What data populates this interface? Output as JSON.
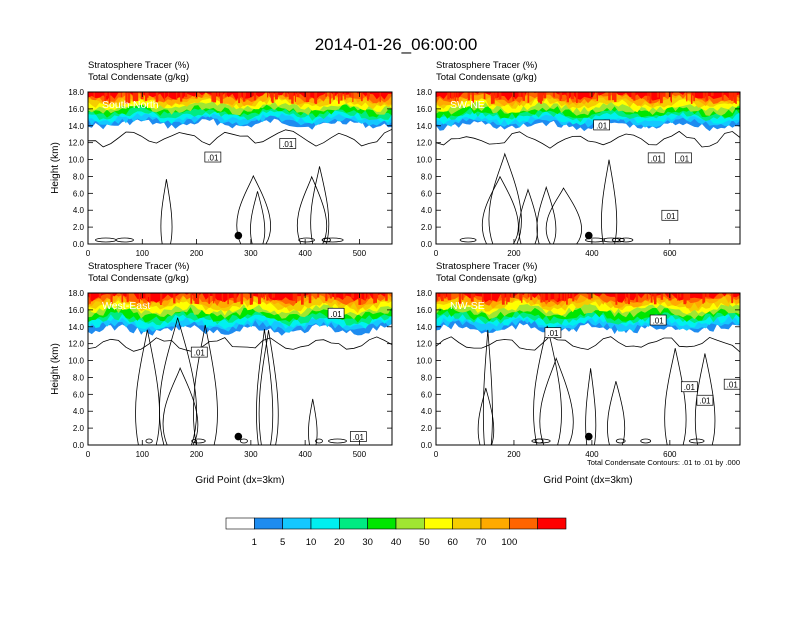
{
  "title": "2014-01-26_06:00:00",
  "chart_data": [
    {
      "type": "heatmap",
      "panel_label": "South-North",
      "title_lines": [
        "Stratosphere Tracer   (%)",
        "Total Condensate   (g/kg)"
      ],
      "ylabel": "Height (km)",
      "xlabel": "",
      "xlim": [
        0,
        560
      ],
      "ylim": [
        0,
        18
      ],
      "xticks": [
        0,
        100,
        200,
        300,
        400,
        500
      ],
      "yticks": [
        "0.0",
        "2.0",
        "4.0",
        "6.0",
        "8.0",
        "10.0",
        "12.0",
        "14.0",
        "16.0",
        "18.0"
      ],
      "tracer_base_km": 14.2,
      "contour_labels": [
        {
          "text": ".01",
          "x": 230,
          "y": 10.3
        },
        {
          "text": ".01",
          "x": 368,
          "y": 11.9
        }
      ],
      "marker": {
        "x": 277,
        "y": 1.0
      }
    },
    {
      "type": "heatmap",
      "panel_label": "SW-NE",
      "title_lines": [
        "Stratosphere Tracer   (%)",
        "Total Condensate   (g/kg)"
      ],
      "ylabel": "",
      "xlabel": "",
      "xlim": [
        0,
        780
      ],
      "ylim": [
        0,
        18
      ],
      "xticks": [
        0,
        200,
        400,
        600
      ],
      "yticks": [
        "0.0",
        "2.0",
        "4.0",
        "6.0",
        "8.0",
        "10.0",
        "12.0",
        "14.0",
        "16.0",
        "18.0"
      ],
      "tracer_base_km": 14.0,
      "contour_labels": [
        {
          "text": ".01",
          "x": 425,
          "y": 14.1
        },
        {
          "text": ".01",
          "x": 565,
          "y": 10.2
        },
        {
          "text": ".01",
          "x": 635,
          "y": 10.2
        },
        {
          "text": ".01",
          "x": 600,
          "y": 3.4
        }
      ],
      "marker": {
        "x": 392,
        "y": 1.0
      }
    },
    {
      "type": "heatmap",
      "panel_label": "West-East",
      "title_lines": [
        "Stratosphere Tracer   (%)",
        "Total Condensate   (g/kg)"
      ],
      "ylabel": "Height (km)",
      "xlabel": "Grid Point (dx=3km)",
      "xlim": [
        0,
        560
      ],
      "ylim": [
        0,
        18
      ],
      "xticks": [
        0,
        100,
        200,
        300,
        400,
        500
      ],
      "yticks": [
        "0.0",
        "2.0",
        "4.0",
        "6.0",
        "8.0",
        "10.0",
        "12.0",
        "14.0",
        "16.0",
        "18.0"
      ],
      "tracer_base_km": 13.6,
      "contour_labels": [
        {
          "text": ".01",
          "x": 205,
          "y": 11.0
        },
        {
          "text": ".01",
          "x": 457,
          "y": 15.6
        },
        {
          "text": ".01",
          "x": 498,
          "y": 1.0
        }
      ],
      "marker": {
        "x": 277,
        "y": 1.0
      }
    },
    {
      "type": "heatmap",
      "panel_label": "NW-SE",
      "title_lines": [
        "Stratosphere Tracer   (%)",
        "Total Condensate   (g/kg)"
      ],
      "ylabel": "",
      "xlabel": "Grid Point (dx=3km)",
      "xlim": [
        0,
        780
      ],
      "ylim": [
        0,
        18
      ],
      "xticks": [
        0,
        200,
        400,
        600
      ],
      "yticks": [
        "0.0",
        "2.0",
        "4.0",
        "6.0",
        "8.0",
        "10.0",
        "12.0",
        "14.0",
        "16.0",
        "18.0"
      ],
      "tracer_base_km": 13.7,
      "contour_labels": [
        {
          "text": ".01",
          "x": 300,
          "y": 13.3
        },
        {
          "text": ".01",
          "x": 570,
          "y": 14.8
        },
        {
          "text": ".01",
          "x": 650,
          "y": 6.9
        },
        {
          "text": ".01",
          "x": 760,
          "y": 7.2
        },
        {
          "text": ".01",
          "x": 690,
          "y": 5.3
        }
      ],
      "marker": {
        "x": 392,
        "y": 1.0
      },
      "note": "Total Condensate Contours: .01 to .01 by .000"
    }
  ],
  "colorbar": {
    "levels": [
      "1",
      "5",
      "10",
      "20",
      "30",
      "40",
      "50",
      "60",
      "70",
      "100"
    ],
    "colors": [
      "#ffffff",
      "#1e8cf0",
      "#14c8ff",
      "#00f0f0",
      "#00eb82",
      "#00e600",
      "#a0e632",
      "#ffff00",
      "#f5cd00",
      "#ffaa00",
      "#ff6400",
      "#ff0000"
    ]
  },
  "styling": {
    "line_color": "#000000",
    "label_color": "#ffffff"
  }
}
